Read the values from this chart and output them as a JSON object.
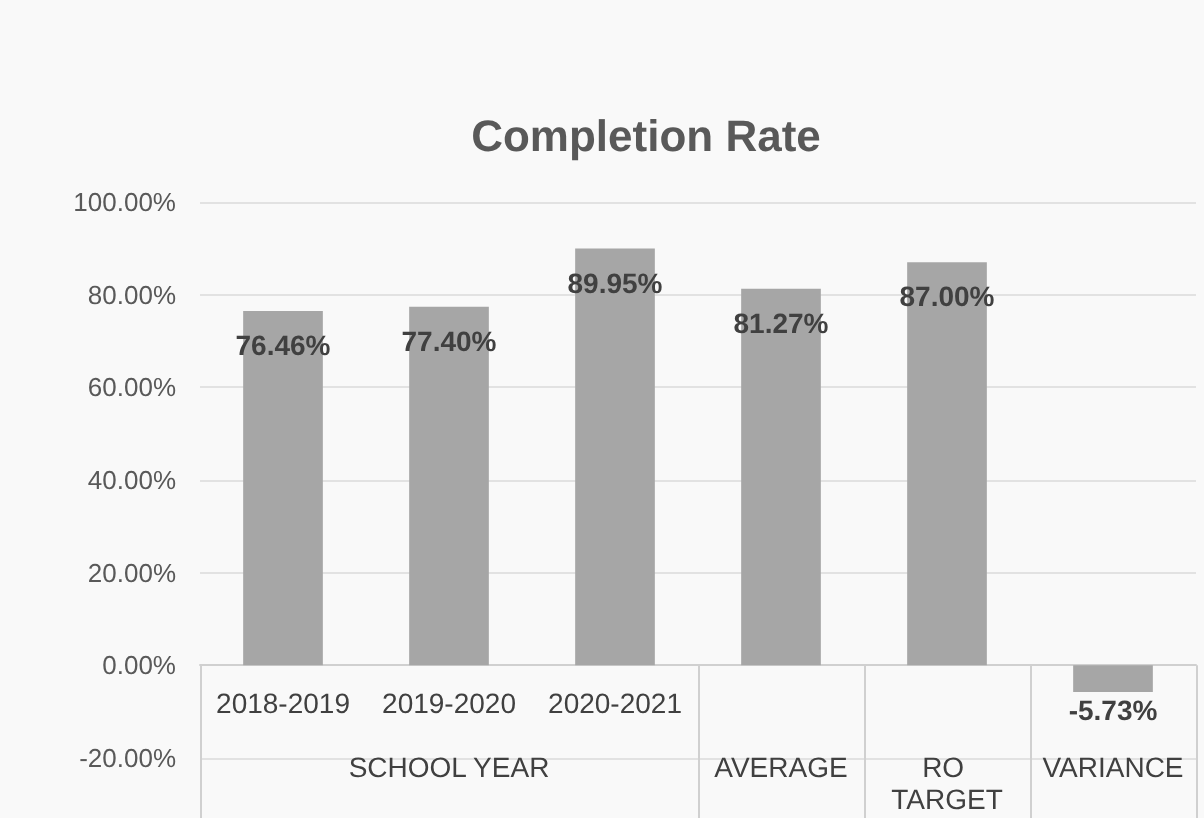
{
  "chart_data": {
    "type": "bar",
    "title": "Completion Rate",
    "categories": [
      "2018-2019",
      "2019-2020",
      "2020-2021",
      "AVERAGE",
      "RO TARGET",
      "VARIANCE"
    ],
    "values": [
      76.46,
      77.4,
      89.95,
      81.27,
      87,
      -5.73
    ],
    "value_labels": [
      "76.46%",
      "77.40%",
      "89.95%",
      "81.27%",
      "87.00%",
      "-5.73%"
    ],
    "color": "#a6a6a6",
    "ylim": [
      -20,
      100
    ],
    "yticks": [
      {
        "value": -20,
        "label": "-20.00%"
      },
      {
        "value": 0,
        "label": "0.00%"
      },
      {
        "value": 20,
        "label": "20.00%"
      },
      {
        "value": 40,
        "label": "40.00%"
      },
      {
        "value": 60,
        "label": "60.00%"
      },
      {
        "value": 80,
        "label": "80.00%"
      },
      {
        "value": 100,
        "label": "100.00%"
      }
    ],
    "grid": "y",
    "annotations": [
      "SCHOOL YEAR"
    ]
  }
}
